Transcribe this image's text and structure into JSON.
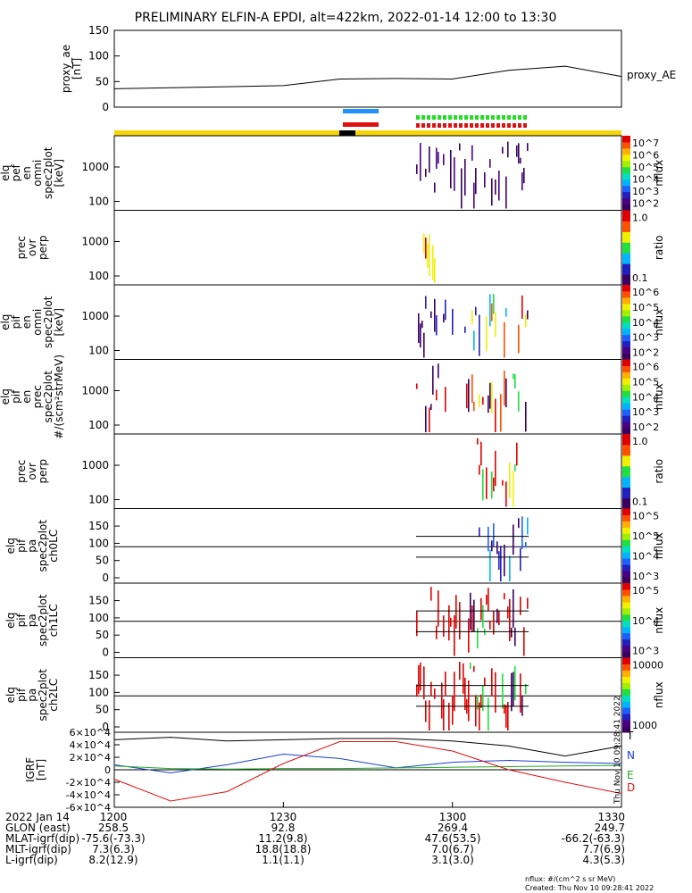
{
  "title": "PRELIMINARY ELFIN-A EPDI, alt=422km, 2022-01-14 12:00 to 13:30",
  "ae_panel": {
    "ylabel_lines": [
      "proxy_ae",
      "[nT]"
    ],
    "legend": "proxy_AE",
    "yticks": [
      "0",
      "50",
      "100",
      "150"
    ],
    "ylim": [
      0,
      150
    ]
  },
  "panels": [
    {
      "ylabel": [
        "elq",
        "pef",
        "en",
        "omni",
        "spec2plot",
        "[keV]"
      ],
      "yticks": [
        "100",
        "1000"
      ],
      "cbar_label": "nflux",
      "cbar_ticks": [
        "10^2",
        "10^3",
        "10^4",
        "10^5",
        "10^6",
        "10^7"
      ]
    },
    {
      "ylabel": [
        "prec",
        "ovr",
        "perp"
      ],
      "yticks": [
        "100",
        "1000"
      ],
      "cbar_label": "ratio",
      "cbar_ticks": [
        "0.1",
        "1.0"
      ]
    },
    {
      "ylabel": [
        "elq",
        "pif",
        "en",
        "omni",
        "spec2plot",
        "[keV]"
      ],
      "yticks": [
        "100",
        "1000"
      ],
      "cbar_label": "nflux",
      "cbar_ticks": [
        "10^2",
        "10^3",
        "10^4",
        "10^5",
        "10^6"
      ]
    },
    {
      "ylabel": [
        "elq",
        "pif",
        "en",
        "prec",
        "spec2plot",
        "#/(scm²strMeV)"
      ],
      "yticks": [
        "100",
        "1000"
      ],
      "cbar_label": "nflux",
      "cbar_ticks": [
        "10^2",
        "10^3",
        "10^4",
        "10^5",
        "10^6"
      ]
    },
    {
      "ylabel": [
        "prec",
        "ovr",
        "perp"
      ],
      "yticks": [
        "100",
        "1000"
      ],
      "cbar_label": "ratio",
      "cbar_ticks": [
        "0.1",
        "1.0"
      ]
    },
    {
      "ylabel": [
        "elq",
        "pif",
        "pa",
        "spec2plot",
        "ch0LC"
      ],
      "yticks": [
        "0",
        "50",
        "100",
        "150"
      ],
      "cbar_label": "nflux",
      "cbar_ticks": [
        "10^3",
        "10^4",
        "10^5",
        "10^5"
      ]
    },
    {
      "ylabel": [
        "elq",
        "pif",
        "pa",
        "spec2plot",
        "ch1LC"
      ],
      "yticks": [
        "0",
        "50",
        "100",
        "150"
      ],
      "cbar_label": "nflux",
      "cbar_ticks": [
        "10^3",
        "10^4",
        "10^5"
      ]
    },
    {
      "ylabel": [
        "elq",
        "pif",
        "pa",
        "spec2plot",
        "ch2LC"
      ],
      "yticks": [
        "0",
        "50",
        "100",
        "150"
      ],
      "cbar_label": "nflux",
      "cbar_ticks": [
        "1000",
        "10000"
      ]
    }
  ],
  "igrf_panel": {
    "ylabel_lines": [
      "IGRF",
      "[nT]"
    ],
    "yticks": [
      "-6×10^4",
      "-4×10^4",
      "-2×10^4",
      "0",
      "2×10^4",
      "4×10^4",
      "6×10^4"
    ],
    "legend": [
      {
        "name": "T",
        "color": "#000000"
      },
      {
        "name": "N",
        "color": "#1a3fd0"
      },
      {
        "name": "E",
        "color": "#22aa22"
      },
      {
        "name": "D",
        "color": "#e01010"
      }
    ],
    "side_stamp": "Thu Nov 10 09:28:41 2022"
  },
  "footer_table": {
    "rows": [
      {
        "label": "2022 Jan 14",
        "values": [
          "1200",
          "1230",
          "1300",
          "1330"
        ]
      },
      {
        "label": "GLON (east)",
        "values": [
          "258.5",
          "92.8",
          "269.4",
          "249.7"
        ]
      },
      {
        "label": "MLAT-igrf(dip)",
        "values": [
          "-75.6(-73.3)",
          "11.2(9.8)",
          "47.6(53.5)",
          "-66.2(-63.3)"
        ]
      },
      {
        "label": "MLT-igrf(dip)",
        "values": [
          "7.3(6.3)",
          "18.8(18.8)",
          "7.0(6.7)",
          "7.7(6.9)"
        ]
      },
      {
        "label": "L-igrf(dip)",
        "values": [
          "8.2(12.9)",
          "1.1(1.1)",
          "3.1(3.0)",
          "4.3(5.3)"
        ]
      }
    ]
  },
  "footer_notes": [
    "nflux: #/(cm^2 s sr MeV)",
    "Created: Thu Nov 10 09:28:41 2022"
  ],
  "chart_data": {
    "type": "line",
    "title": "PRELIMINARY ELFIN-A EPDI, alt=422km, 2022-01-14 12:00 to 13:30",
    "x": [
      "12:00",
      "12:10",
      "12:20",
      "12:30",
      "12:40",
      "12:50",
      "13:00",
      "13:10",
      "13:20",
      "13:30"
    ],
    "series": [
      {
        "name": "proxy_AE",
        "values": [
          36,
          38,
          40,
          42,
          55,
          56,
          55,
          72,
          80,
          60
        ]
      }
    ],
    "ylim": [
      0,
      150
    ],
    "xlabel": "",
    "ylabel": "proxy_ae [nT]",
    "igrf": {
      "T": [
        48000,
        52000,
        46000,
        48000,
        50000,
        50000,
        46000,
        38000,
        22000,
        38000
      ],
      "N": [
        8000,
        -5000,
        8000,
        25000,
        18000,
        3000,
        12000,
        15000,
        12000,
        10000
      ],
      "E": [
        6000,
        2000,
        1000,
        2000,
        2000,
        3000,
        4000,
        5000,
        6000,
        7000
      ],
      "D": [
        -15000,
        -50000,
        -35000,
        10000,
        45000,
        45000,
        30000,
        0,
        -20000,
        -38000
      ]
    },
    "orbit_bars": [
      {
        "color": "#1e90ff",
        "start": "12:37",
        "end": "12:43"
      },
      {
        "color": "#e01010",
        "start": "12:37",
        "end": "12:43"
      },
      {
        "color": "#22dd22",
        "start": "12:57",
        "end": "13:13"
      },
      {
        "color": "#e01010",
        "start": "12:57",
        "end": "13:13"
      }
    ]
  }
}
